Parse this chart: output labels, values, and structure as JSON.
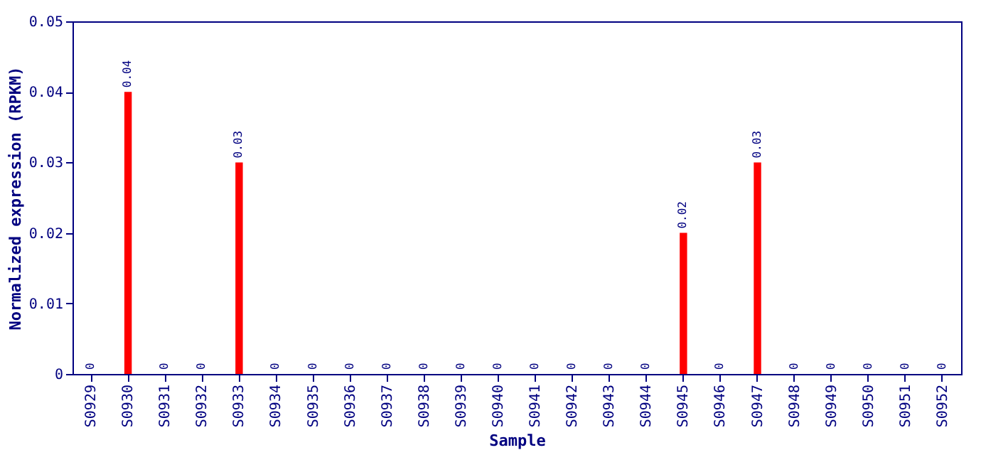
{
  "chart_data": {
    "type": "bar",
    "xlabel": "Sample",
    "ylabel": "Normalized expression (RPKM)",
    "categories": [
      "S0929",
      "S0930",
      "S0931",
      "S0932",
      "S0933",
      "S0934",
      "S0935",
      "S0936",
      "S0937",
      "S0938",
      "S0939",
      "S0940",
      "S0941",
      "S0942",
      "S0943",
      "S0944",
      "S0945",
      "S0946",
      "S0947",
      "S0948",
      "S0949",
      "S0950",
      "S0951",
      "S0952"
    ],
    "values": [
      0,
      0.04,
      0,
      0,
      0.03,
      0,
      0,
      0,
      0,
      0,
      0,
      0,
      0,
      0,
      0,
      0,
      0.02,
      0,
      0.03,
      0,
      0,
      0,
      0,
      0
    ],
    "color": "#ff0000",
    "ylim": [
      0,
      0.05
    ],
    "yticks": [
      0,
      0.01,
      0.02,
      0.03,
      0.04,
      0.05
    ],
    "data_labels": true
  }
}
